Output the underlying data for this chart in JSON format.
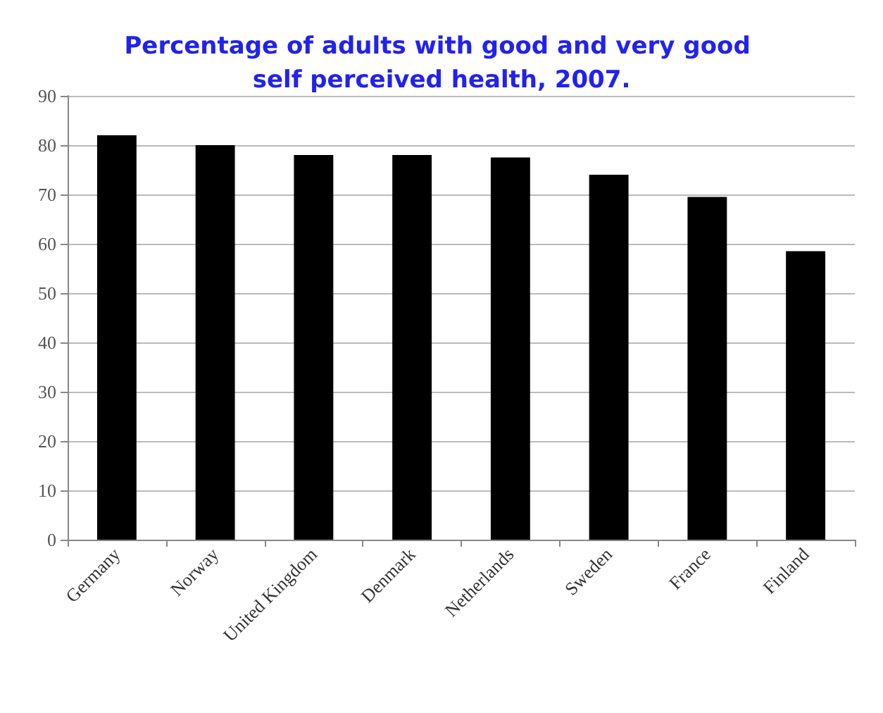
{
  "chart_data": {
    "type": "bar",
    "title": "Percentage of adults with good and very good self perceived health, 2007.",
    "categories": [
      "Germany",
      "Norway",
      "United Kingdom",
      "Denmark",
      "Netherlands",
      "Sweden",
      "France",
      "Finland"
    ],
    "values": [
      82,
      80,
      78,
      78,
      77.5,
      74,
      69.5,
      58.5
    ],
    "color": "#000000",
    "ylim": [
      0,
      90
    ],
    "yticks": [
      0,
      10,
      20,
      30,
      40,
      50,
      60,
      70,
      80,
      90
    ],
    "grid": "y"
  }
}
